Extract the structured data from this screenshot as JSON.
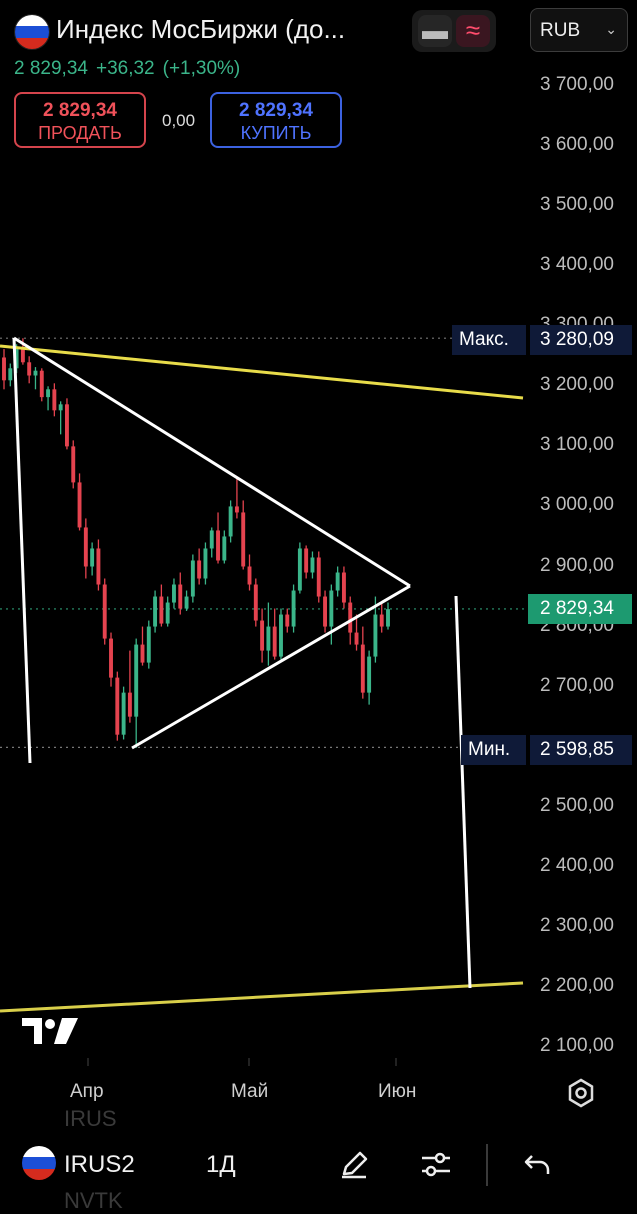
{
  "header": {
    "title": "Индекс МосБиржи (до...",
    "last": "2 829,34",
    "change": "+36,32",
    "change_pct": "(+1,30%)",
    "currency": "RUB"
  },
  "trade": {
    "sell_price": "2 829,34",
    "sell_label": "ПРОДАТЬ",
    "spread": "0,00",
    "buy_price": "2 829,34",
    "buy_label": "КУПИТЬ"
  },
  "colors": {
    "up": "#3bb58a",
    "down": "#e5434f",
    "sell": "#f0525a",
    "buy": "#4f73ff",
    "trend_yellow": "#e8dc4a"
  },
  "chart_data": {
    "type": "candlestick",
    "y_ticks": [
      "3 700,00",
      "3 600,00",
      "3 500,00",
      "3 400,00",
      "3 300,00",
      "3 200,00",
      "3 100,00",
      "3 000,00",
      "2 900,00",
      "2 800,00",
      "2 700,00",
      "2 500,00",
      "2 400,00",
      "2 300,00",
      "2 200,00",
      "2 100,00"
    ],
    "x_ticks": [
      "Апр",
      "Май",
      "Июн"
    ],
    "ylim": [
      2075,
      3760
    ],
    "max_label": "Макс.",
    "max_value": "3 280,09",
    "min_label": "Мин.",
    "min_value": "2 598,85",
    "current_price": "2 829,34",
    "candles": [
      [
        3248,
        3262,
        3195,
        3210
      ],
      [
        3210,
        3238,
        3200,
        3230
      ],
      [
        3230,
        3270,
        3222,
        3265
      ],
      [
        3265,
        3280,
        3236,
        3240
      ],
      [
        3240,
        3250,
        3205,
        3218
      ],
      [
        3218,
        3232,
        3195,
        3226
      ],
      [
        3226,
        3230,
        3175,
        3182
      ],
      [
        3182,
        3200,
        3160,
        3195
      ],
      [
        3195,
        3205,
        3150,
        3160
      ],
      [
        3160,
        3175,
        3120,
        3170
      ],
      [
        3170,
        3180,
        3095,
        3100
      ],
      [
        3100,
        3110,
        3030,
        3040
      ],
      [
        3040,
        3055,
        2960,
        2965
      ],
      [
        2965,
        2980,
        2880,
        2900
      ],
      [
        2900,
        2940,
        2885,
        2930
      ],
      [
        2930,
        2945,
        2860,
        2870
      ],
      [
        2870,
        2880,
        2770,
        2780
      ],
      [
        2780,
        2790,
        2700,
        2715
      ],
      [
        2715,
        2725,
        2610,
        2620
      ],
      [
        2620,
        2700,
        2612,
        2690
      ],
      [
        2690,
        2760,
        2640,
        2650
      ],
      [
        2650,
        2780,
        2598,
        2770
      ],
      [
        2770,
        2800,
        2735,
        2740
      ],
      [
        2740,
        2810,
        2730,
        2800
      ],
      [
        2800,
        2860,
        2790,
        2850
      ],
      [
        2850,
        2870,
        2800,
        2805
      ],
      [
        2805,
        2850,
        2800,
        2840
      ],
      [
        2840,
        2880,
        2830,
        2870
      ],
      [
        2870,
        2890,
        2820,
        2830
      ],
      [
        2830,
        2860,
        2826,
        2850
      ],
      [
        2850,
        2920,
        2840,
        2910
      ],
      [
        2910,
        2930,
        2870,
        2880
      ],
      [
        2880,
        2940,
        2870,
        2930
      ],
      [
        2930,
        2965,
        2915,
        2960
      ],
      [
        2960,
        2990,
        2905,
        2910
      ],
      [
        2910,
        2960,
        2905,
        2950
      ],
      [
        2950,
        3010,
        2940,
        3000
      ],
      [
        3000,
        3050,
        2980,
        2990
      ],
      [
        2990,
        3010,
        2895,
        2900
      ],
      [
        2900,
        2920,
        2860,
        2870
      ],
      [
        2870,
        2880,
        2800,
        2810
      ],
      [
        2810,
        2830,
        2740,
        2760
      ],
      [
        2760,
        2840,
        2735,
        2800
      ],
      [
        2800,
        2830,
        2745,
        2750
      ],
      [
        2750,
        2830,
        2745,
        2820
      ],
      [
        2820,
        2830,
        2790,
        2800
      ],
      [
        2800,
        2870,
        2790,
        2860
      ],
      [
        2860,
        2940,
        2855,
        2930
      ],
      [
        2930,
        2935,
        2880,
        2890
      ],
      [
        2890,
        2925,
        2880,
        2915
      ],
      [
        2915,
        2925,
        2840,
        2850
      ],
      [
        2850,
        2860,
        2790,
        2800
      ],
      [
        2800,
        2870,
        2770,
        2860
      ],
      [
        2860,
        2900,
        2850,
        2890
      ],
      [
        2890,
        2900,
        2830,
        2840
      ],
      [
        2840,
        2850,
        2770,
        2790
      ],
      [
        2790,
        2820,
        2760,
        2770
      ],
      [
        2770,
        2800,
        2680,
        2690
      ],
      [
        2690,
        2760,
        2670,
        2750
      ],
      [
        2750,
        2850,
        2740,
        2820
      ],
      [
        2820,
        2840,
        2790,
        2800
      ],
      [
        2800,
        2840,
        2795,
        2829
      ]
    ]
  },
  "bottom_bar": {
    "symbol": "IRUS2",
    "timeframe": "1Д",
    "ghost_above": "IRUS",
    "ghost_below": "NVTK"
  },
  "icons": [
    "flag-russia-icon",
    "line-style-icon",
    "wave-icon",
    "chevron-down-icon",
    "tradingview-logo-icon",
    "settings-icon",
    "pencil-icon",
    "sliders-icon",
    "undo-icon"
  ]
}
